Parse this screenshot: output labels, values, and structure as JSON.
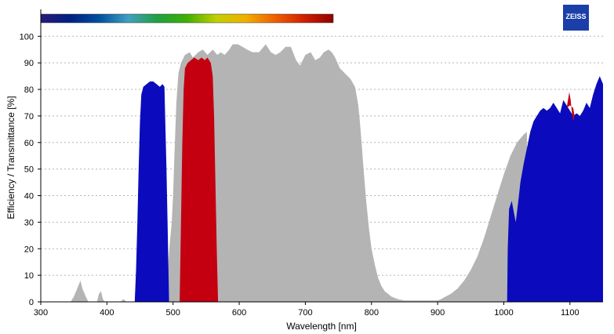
{
  "chart_data": {
    "type": "area",
    "xlabel": "Wavelength [nm]",
    "ylabel": "Efficiency / Transmittance [%]",
    "xlim": [
      300,
      1150
    ],
    "ylim": [
      0,
      105
    ],
    "x_ticks": [
      300,
      400,
      500,
      600,
      700,
      800,
      900,
      1000,
      1100
    ],
    "y_ticks": [
      0,
      10,
      20,
      30,
      40,
      50,
      60,
      70,
      80,
      90,
      100
    ],
    "grid": "horizontal-dotted",
    "series": [
      {
        "color": "#b4b4b4",
        "points": [
          [
            345,
            0
          ],
          [
            350,
            2
          ],
          [
            355,
            5
          ],
          [
            360,
            8
          ],
          [
            363,
            5
          ],
          [
            368,
            2
          ],
          [
            372,
            0
          ],
          [
            385,
            0
          ],
          [
            388,
            3
          ],
          [
            391,
            4
          ],
          [
            394,
            1
          ],
          [
            397,
            0
          ],
          [
            420,
            0
          ],
          [
            425,
            1
          ],
          [
            430,
            0
          ],
          [
            492,
            0
          ],
          [
            493,
            15
          ],
          [
            495,
            22
          ],
          [
            498,
            30
          ],
          [
            500,
            40
          ],
          [
            502,
            55
          ],
          [
            505,
            75
          ],
          [
            508,
            86
          ],
          [
            512,
            90
          ],
          [
            518,
            93
          ],
          [
            525,
            94
          ],
          [
            530,
            92
          ],
          [
            538,
            94
          ],
          [
            545,
            95
          ],
          [
            552,
            93
          ],
          [
            560,
            95
          ],
          [
            567,
            93
          ],
          [
            572,
            94
          ],
          [
            578,
            93
          ],
          [
            585,
            95
          ],
          [
            590,
            97
          ],
          [
            598,
            97
          ],
          [
            605,
            96
          ],
          [
            612,
            95
          ],
          [
            620,
            94
          ],
          [
            630,
            94
          ],
          [
            640,
            97
          ],
          [
            648,
            94
          ],
          [
            655,
            93
          ],
          [
            662,
            94
          ],
          [
            670,
            96
          ],
          [
            678,
            96
          ],
          [
            686,
            91
          ],
          [
            692,
            89
          ],
          [
            700,
            93
          ],
          [
            708,
            94
          ],
          [
            715,
            91
          ],
          [
            722,
            92
          ],
          [
            728,
            94
          ],
          [
            735,
            95
          ],
          [
            740,
            94
          ],
          [
            745,
            92
          ],
          [
            752,
            88
          ],
          [
            760,
            86
          ],
          [
            768,
            84
          ],
          [
            775,
            81
          ],
          [
            778,
            77
          ],
          [
            780,
            74
          ],
          [
            782,
            69
          ],
          [
            785,
            60
          ],
          [
            788,
            50
          ],
          [
            792,
            38
          ],
          [
            796,
            28
          ],
          [
            800,
            20
          ],
          [
            805,
            14
          ],
          [
            810,
            9
          ],
          [
            815,
            6
          ],
          [
            820,
            4
          ],
          [
            825,
            3
          ],
          [
            830,
            2
          ],
          [
            840,
            1
          ],
          [
            850,
            0.5
          ],
          [
            900,
            0.5
          ],
          [
            905,
            1
          ],
          [
            912,
            2
          ],
          [
            920,
            3
          ],
          [
            930,
            5
          ],
          [
            940,
            8
          ],
          [
            950,
            12
          ],
          [
            960,
            17
          ],
          [
            970,
            24
          ],
          [
            980,
            32
          ],
          [
            990,
            40
          ],
          [
            1000,
            48
          ],
          [
            1010,
            55
          ],
          [
            1020,
            60
          ],
          [
            1030,
            63
          ],
          [
            1035,
            64
          ],
          [
            1035,
            0
          ],
          [
            345,
            0
          ]
        ]
      },
      {
        "color": "#0b0bbd",
        "points": [
          [
            442,
            0
          ],
          [
            444,
            12
          ],
          [
            446,
            30
          ],
          [
            448,
            50
          ],
          [
            450,
            68
          ],
          [
            452,
            78
          ],
          [
            455,
            81
          ],
          [
            460,
            82
          ],
          [
            465,
            83
          ],
          [
            470,
            83
          ],
          [
            475,
            82
          ],
          [
            480,
            81
          ],
          [
            484,
            82
          ],
          [
            487,
            81
          ],
          [
            488,
            70
          ],
          [
            490,
            50
          ],
          [
            492,
            25
          ],
          [
            494,
            0
          ]
        ]
      },
      {
        "color": "#0b0bbd",
        "points": [
          [
            1005,
            0
          ],
          [
            1006,
            20
          ],
          [
            1008,
            35
          ],
          [
            1012,
            38
          ],
          [
            1015,
            34
          ],
          [
            1018,
            30
          ],
          [
            1022,
            38
          ],
          [
            1025,
            45
          ],
          [
            1030,
            52
          ],
          [
            1035,
            58
          ],
          [
            1040,
            64
          ],
          [
            1045,
            68
          ],
          [
            1050,
            70
          ],
          [
            1055,
            72
          ],
          [
            1060,
            73
          ],
          [
            1065,
            72
          ],
          [
            1070,
            73
          ],
          [
            1075,
            75
          ],
          [
            1080,
            73
          ],
          [
            1085,
            71
          ],
          [
            1090,
            76
          ],
          [
            1095,
            74
          ],
          [
            1100,
            72
          ],
          [
            1105,
            70
          ],
          [
            1110,
            71
          ],
          [
            1115,
            70
          ],
          [
            1120,
            72
          ],
          [
            1125,
            75
          ],
          [
            1130,
            73
          ],
          [
            1135,
            78
          ],
          [
            1140,
            82
          ],
          [
            1145,
            85
          ],
          [
            1150,
            82
          ],
          [
            1150,
            0
          ],
          [
            1005,
            0
          ]
        ]
      },
      {
        "color": "#c40010",
        "points": [
          [
            510,
            0
          ],
          [
            512,
            30
          ],
          [
            514,
            60
          ],
          [
            516,
            80
          ],
          [
            518,
            88
          ],
          [
            522,
            90
          ],
          [
            527,
            91
          ],
          [
            532,
            92
          ],
          [
            538,
            91
          ],
          [
            543,
            92
          ],
          [
            548,
            91
          ],
          [
            552,
            92
          ],
          [
            557,
            90
          ],
          [
            560,
            85
          ],
          [
            562,
            70
          ],
          [
            564,
            45
          ],
          [
            566,
            20
          ],
          [
            568,
            0
          ]
        ]
      },
      {
        "color": "#c40010",
        "points": [
          [
            1095,
            73
          ],
          [
            1097,
            76
          ],
          [
            1099,
            79
          ],
          [
            1101,
            76
          ],
          [
            1103,
            71
          ],
          [
            1105,
            68
          ],
          [
            1107,
            70
          ],
          [
            1105,
            73
          ],
          [
            1100,
            74
          ]
        ]
      }
    ]
  },
  "color_bar": {
    "colors": [
      "#2a1a7a",
      "#002080",
      "#0050a0",
      "#40a0c0",
      "#20a040",
      "#40b000",
      "#c0d000",
      "#f0b000",
      "#f06000",
      "#d02000",
      "#900000"
    ]
  },
  "logo": {
    "text": "ZEISS",
    "color": "#1a3fa8"
  }
}
